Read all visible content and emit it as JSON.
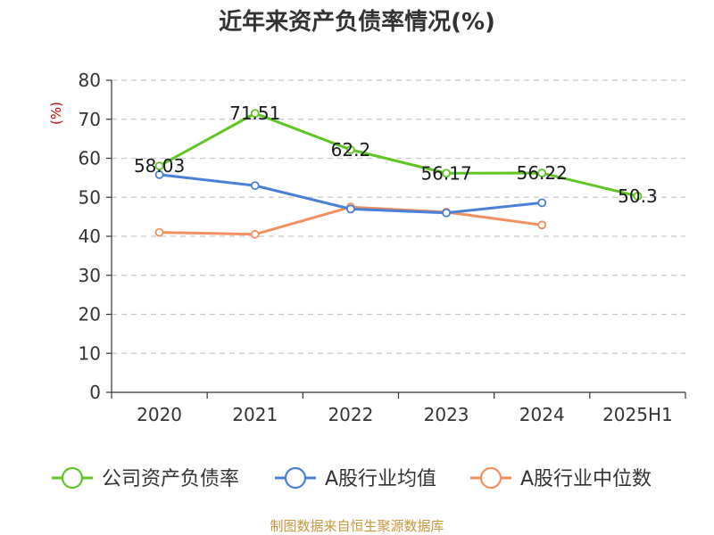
{
  "chart_data": {
    "type": "line",
    "title": "近年来资产负债率情况(%)",
    "ylabel": "(%)",
    "xlabel": "",
    "categories": [
      "2020",
      "2021",
      "2022",
      "2023",
      "2024",
      "2025H1"
    ],
    "ylim": [
      0,
      80
    ],
    "yticks": [
      0,
      10,
      20,
      30,
      40,
      50,
      60,
      70,
      80
    ],
    "grid": true,
    "legend_position": "bottom",
    "series": [
      {
        "name": "公司资产负债率",
        "color": "#5ec523",
        "values": [
          58.03,
          71.51,
          62.2,
          56.17,
          56.22,
          50.3
        ],
        "labels": [
          "58.03",
          "71.51",
          "62.2",
          "56.17",
          "56.22",
          "50.3"
        ]
      },
      {
        "name": "A股行业均值",
        "color": "#4a7fd8",
        "values": [
          55.8,
          53.0,
          47.0,
          46.0,
          48.6,
          null
        ]
      },
      {
        "name": "A股行业中位数",
        "color": "#f28f5e",
        "values": [
          41.0,
          40.5,
          47.5,
          46.2,
          42.9,
          null
        ]
      }
    ],
    "source": "制图数据来自恒生聚源数据库"
  }
}
